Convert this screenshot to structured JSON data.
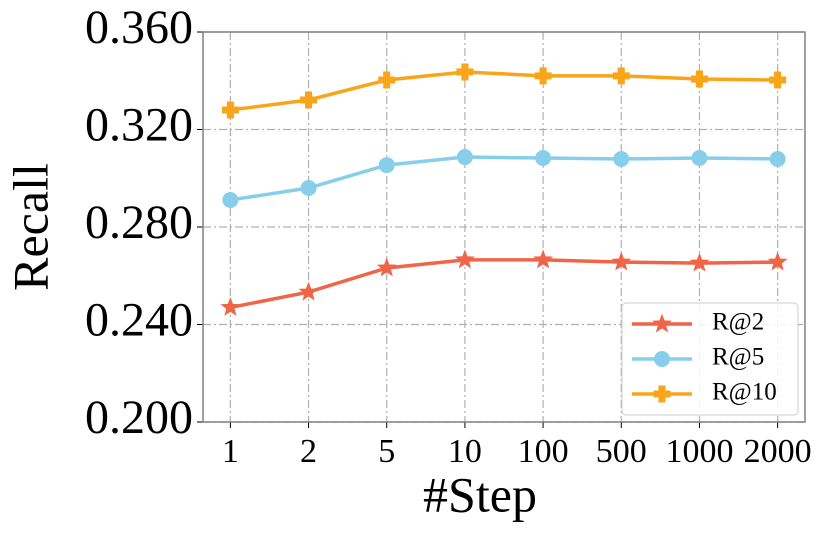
{
  "chart_data": {
    "type": "line",
    "x_label": "#Step",
    "y_label": "Recall",
    "categories": [
      "1",
      "2",
      "5",
      "10",
      "100",
      "500",
      "1000",
      "2000"
    ],
    "series": [
      {
        "name": "R@2",
        "color": "#f06448",
        "marker": "star",
        "values": [
          0.247,
          0.2533,
          0.2632,
          0.2665,
          0.2665,
          0.2656,
          0.2652,
          0.2656
        ]
      },
      {
        "name": "R@5",
        "color": "#87ceeb",
        "marker": "circle",
        "values": [
          0.2911,
          0.296,
          0.3054,
          0.3087,
          0.3083,
          0.3079,
          0.3083,
          0.3079
        ]
      },
      {
        "name": "R@10",
        "color": "#f9a51a",
        "marker": "plus",
        "values": [
          0.328,
          0.3321,
          0.3403,
          0.3436,
          0.342,
          0.342,
          0.3407,
          0.3403
        ]
      }
    ],
    "ylim": [
      0.2,
      0.36
    ],
    "yticks": [
      {
        "value": 0.2,
        "label": "0.200"
      },
      {
        "value": 0.24,
        "label": "0.240"
      },
      {
        "value": 0.28,
        "label": "0.280"
      },
      {
        "value": 0.32,
        "label": "0.320"
      },
      {
        "value": 0.36,
        "label": "0.360"
      }
    ],
    "grid": true,
    "legend": "lower right"
  }
}
